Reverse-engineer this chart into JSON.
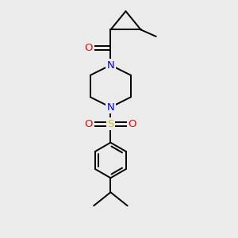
{
  "bg_color": "#ebebeb",
  "atom_colors": {
    "C": "#000000",
    "N": "#0000ee",
    "O": "#ff0000",
    "S": "#cccc00"
  },
  "bond_lw": 1.4,
  "font_size": 9.5
}
